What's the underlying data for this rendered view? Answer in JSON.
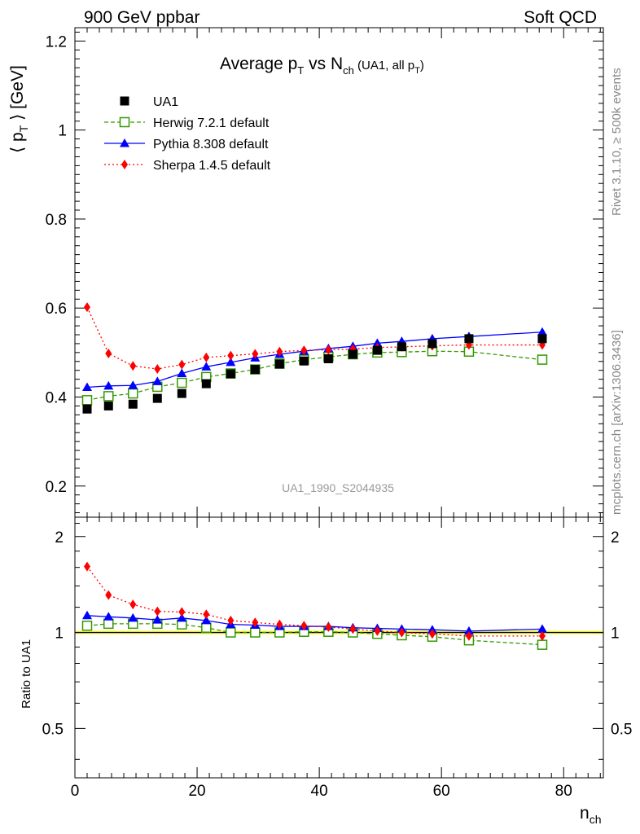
{
  "header": {
    "left": "900 GeV ppbar",
    "right": "Soft QCD"
  },
  "side_labels": {
    "top": "Rivet 3.1.10, ≥ 500k events",
    "bottom": "mcplots.cern.ch [arXiv:1306.3436]"
  },
  "watermark": "UA1_1990_S2044935",
  "chart_data": {
    "type": "line",
    "title": {
      "main": "Average p",
      "sub1": "T",
      "mid": " vs N",
      "sub2": "ch",
      "small": " (UA1, all p",
      "small_sub": "T",
      "small_end": ")"
    },
    "ylabel": {
      "pre": "⟨ p",
      "sub": "T",
      "post": " ⟩ [GeV]"
    },
    "xlabel": {
      "main": "n",
      "sub": "ch"
    },
    "ratio_ylabel": "Ratio to UA1",
    "xlim": [
      0,
      86.5
    ],
    "ylim": [
      0.13,
      1.23
    ],
    "ratio_ylim": [
      0.35,
      2.3
    ],
    "ratio_log": true,
    "x_ticks": [
      0,
      20,
      40,
      60,
      80
    ],
    "y_ticks": [
      0.2,
      0.4,
      0.6,
      0.8,
      1,
      1.2
    ],
    "y_tick_labels": [
      "0.2",
      "0.4",
      "0.6",
      "0.8",
      "1",
      "1.2"
    ],
    "ratio_ticks": [
      0.5,
      1,
      2
    ],
    "ratio_tick_labels": [
      "0.5",
      "1",
      "2"
    ],
    "legend_position": "top-left",
    "x": [
      2,
      5.5,
      9.5,
      13.5,
      17.5,
      21.5,
      25.5,
      29.5,
      33.5,
      37.5,
      41.5,
      45.5,
      49.5,
      53.5,
      58.5,
      64.5,
      76.5
    ],
    "series": [
      {
        "name": "UA1",
        "color": "#000000",
        "marker": "square",
        "line": "none",
        "values": [
          0.373,
          0.38,
          0.384,
          0.397,
          0.408,
          0.43,
          0.452,
          0.462,
          0.474,
          0.481,
          0.486,
          0.496,
          0.505,
          0.513,
          0.52,
          0.531,
          0.531
        ]
      },
      {
        "name": "Herwig 7.2.1 default",
        "color": "#339900",
        "marker": "open-square",
        "line": "dashed",
        "values": [
          0.393,
          0.402,
          0.408,
          0.423,
          0.432,
          0.445,
          0.453,
          0.462,
          0.475,
          0.484,
          0.49,
          0.496,
          0.5,
          0.501,
          0.503,
          0.502,
          0.484
        ]
      },
      {
        "name": "Pythia 8.308 default",
        "color": "#0000ff",
        "marker": "triangle",
        "line": "solid",
        "values": [
          0.422,
          0.425,
          0.426,
          0.435,
          0.453,
          0.468,
          0.478,
          0.488,
          0.496,
          0.503,
          0.509,
          0.514,
          0.521,
          0.525,
          0.531,
          0.536,
          0.546
        ]
      },
      {
        "name": "Sherpa 1.4.5 default",
        "color": "#ff0000",
        "marker": "diamond",
        "line": "dotted",
        "values": [
          0.602,
          0.498,
          0.47,
          0.463,
          0.473,
          0.489,
          0.493,
          0.497,
          0.502,
          0.505,
          0.506,
          0.508,
          0.511,
          0.513,
          0.515,
          0.517,
          0.517
        ]
      }
    ],
    "ratios": {
      "Herwig 7.2.1 default": [
        1.05,
        1.065,
        1.065,
        1.065,
        1.06,
        1.035,
        1.0,
        1.0,
        1.0,
        1.005,
        1.005,
        1.0,
        0.99,
        0.98,
        0.97,
        0.945,
        0.915
      ],
      "Pythia 8.308 default": [
        1.13,
        1.12,
        1.11,
        1.095,
        1.11,
        1.09,
        1.06,
        1.055,
        1.045,
        1.045,
        1.045,
        1.035,
        1.03,
        1.025,
        1.02,
        1.01,
        1.025
      ],
      "Sherpa 1.4.5 default": [
        1.61,
        1.31,
        1.225,
        1.165,
        1.16,
        1.14,
        1.09,
        1.075,
        1.06,
        1.05,
        1.04,
        1.025,
        1.01,
        1.0,
        0.99,
        0.975,
        0.975
      ]
    },
    "ratio_band_color": "#ffff66"
  }
}
